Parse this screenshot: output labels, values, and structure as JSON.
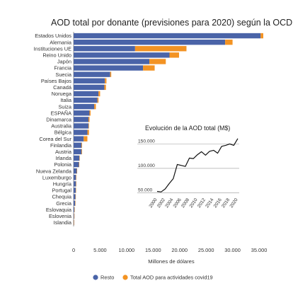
{
  "colors": {
    "resto": "#4a64a8",
    "covid": "#f39323",
    "line": "#111111",
    "grid": "#999999"
  },
  "chart_data": [
    {
      "type": "bar",
      "orientation": "horizontal",
      "stacked": true,
      "title": "AOD total por donante (previsiones para 2020) según la OCDE",
      "xlabel": "Millones de dólares",
      "ylabel": "",
      "xlim": [
        0,
        37000
      ],
      "xticks": [
        0,
        5000,
        10000,
        15000,
        20000,
        25000,
        30000,
        35000
      ],
      "xtick_labels": [
        "0",
        "5.000",
        "10.000",
        "15.000",
        "20.000",
        "25.000",
        "30.000",
        "35.000"
      ],
      "grid": false,
      "legend_position": "bottom",
      "categories": [
        "Estados Unidos",
        "Alemania",
        "Instituciones UE",
        "Reino Unido",
        "Japón",
        "Francia",
        "Suecia",
        "Países Bajos",
        "Canadá",
        "Noruega",
        "Italia",
        "Suiza",
        "ESPAÑA",
        "Dinamarca",
        "Australia",
        "Bélgica",
        "Corea del Sur",
        "Finlandia",
        "Austria",
        "Irlanda",
        "Polonia",
        "Nueva Zelanda",
        "Luxemburgo",
        "Hungría",
        "Portugal",
        "Chequia",
        "Grecia",
        "Eslovaquia",
        "Eslovenia",
        "Islandia"
      ],
      "series": [
        {
          "name": "Resto",
          "values": [
            35300,
            28600,
            11600,
            18100,
            14300,
            13100,
            6900,
            5900,
            5800,
            4700,
            4500,
            3900,
            3000,
            2800,
            2800,
            2600,
            1900,
            1500,
            1500,
            1100,
            1000,
            600,
            450,
            450,
            400,
            350,
            300,
            150,
            100,
            50
          ]
        },
        {
          "name": "Total AOD para actividades covid19",
          "values": [
            500,
            1400,
            9700,
            1800,
            3100,
            2200,
            200,
            300,
            300,
            300,
            200,
            300,
            200,
            200,
            100,
            300,
            700,
            100,
            100,
            50,
            50,
            50,
            50,
            50,
            50,
            50,
            50,
            20,
            20,
            10
          ]
        }
      ]
    },
    {
      "type": "line",
      "title": "Evolución de la AOD total (M$)",
      "xlabel": "",
      "ylabel": "",
      "xlim": [
        2000,
        2020
      ],
      "ylim": [
        45000,
        165000
      ],
      "xticks": [
        2000,
        2002,
        2004,
        2006,
        2008,
        2010,
        2012,
        2014,
        2016,
        2018,
        2020
      ],
      "yticks": [
        50000,
        100000,
        150000
      ],
      "ytick_labels": [
        "50.000",
        "100.000",
        "150.000"
      ],
      "grid": true,
      "series": [
        {
          "x": [
            2000,
            2001,
            2002,
            2003,
            2004,
            2005,
            2006,
            2007,
            2008,
            2009,
            2010,
            2011,
            2012,
            2013,
            2014,
            2015,
            2016,
            2017,
            2018,
            2019,
            2020
          ],
          "values": [
            53000,
            52000,
            58000,
            69000,
            79000,
            108000,
            106000,
            104000,
            121000,
            120000,
            128000,
            134000,
            127000,
            135000,
            137000,
            131000,
            145000,
            147000,
            150000,
            147000,
            161000
          ]
        }
      ]
    }
  ]
}
